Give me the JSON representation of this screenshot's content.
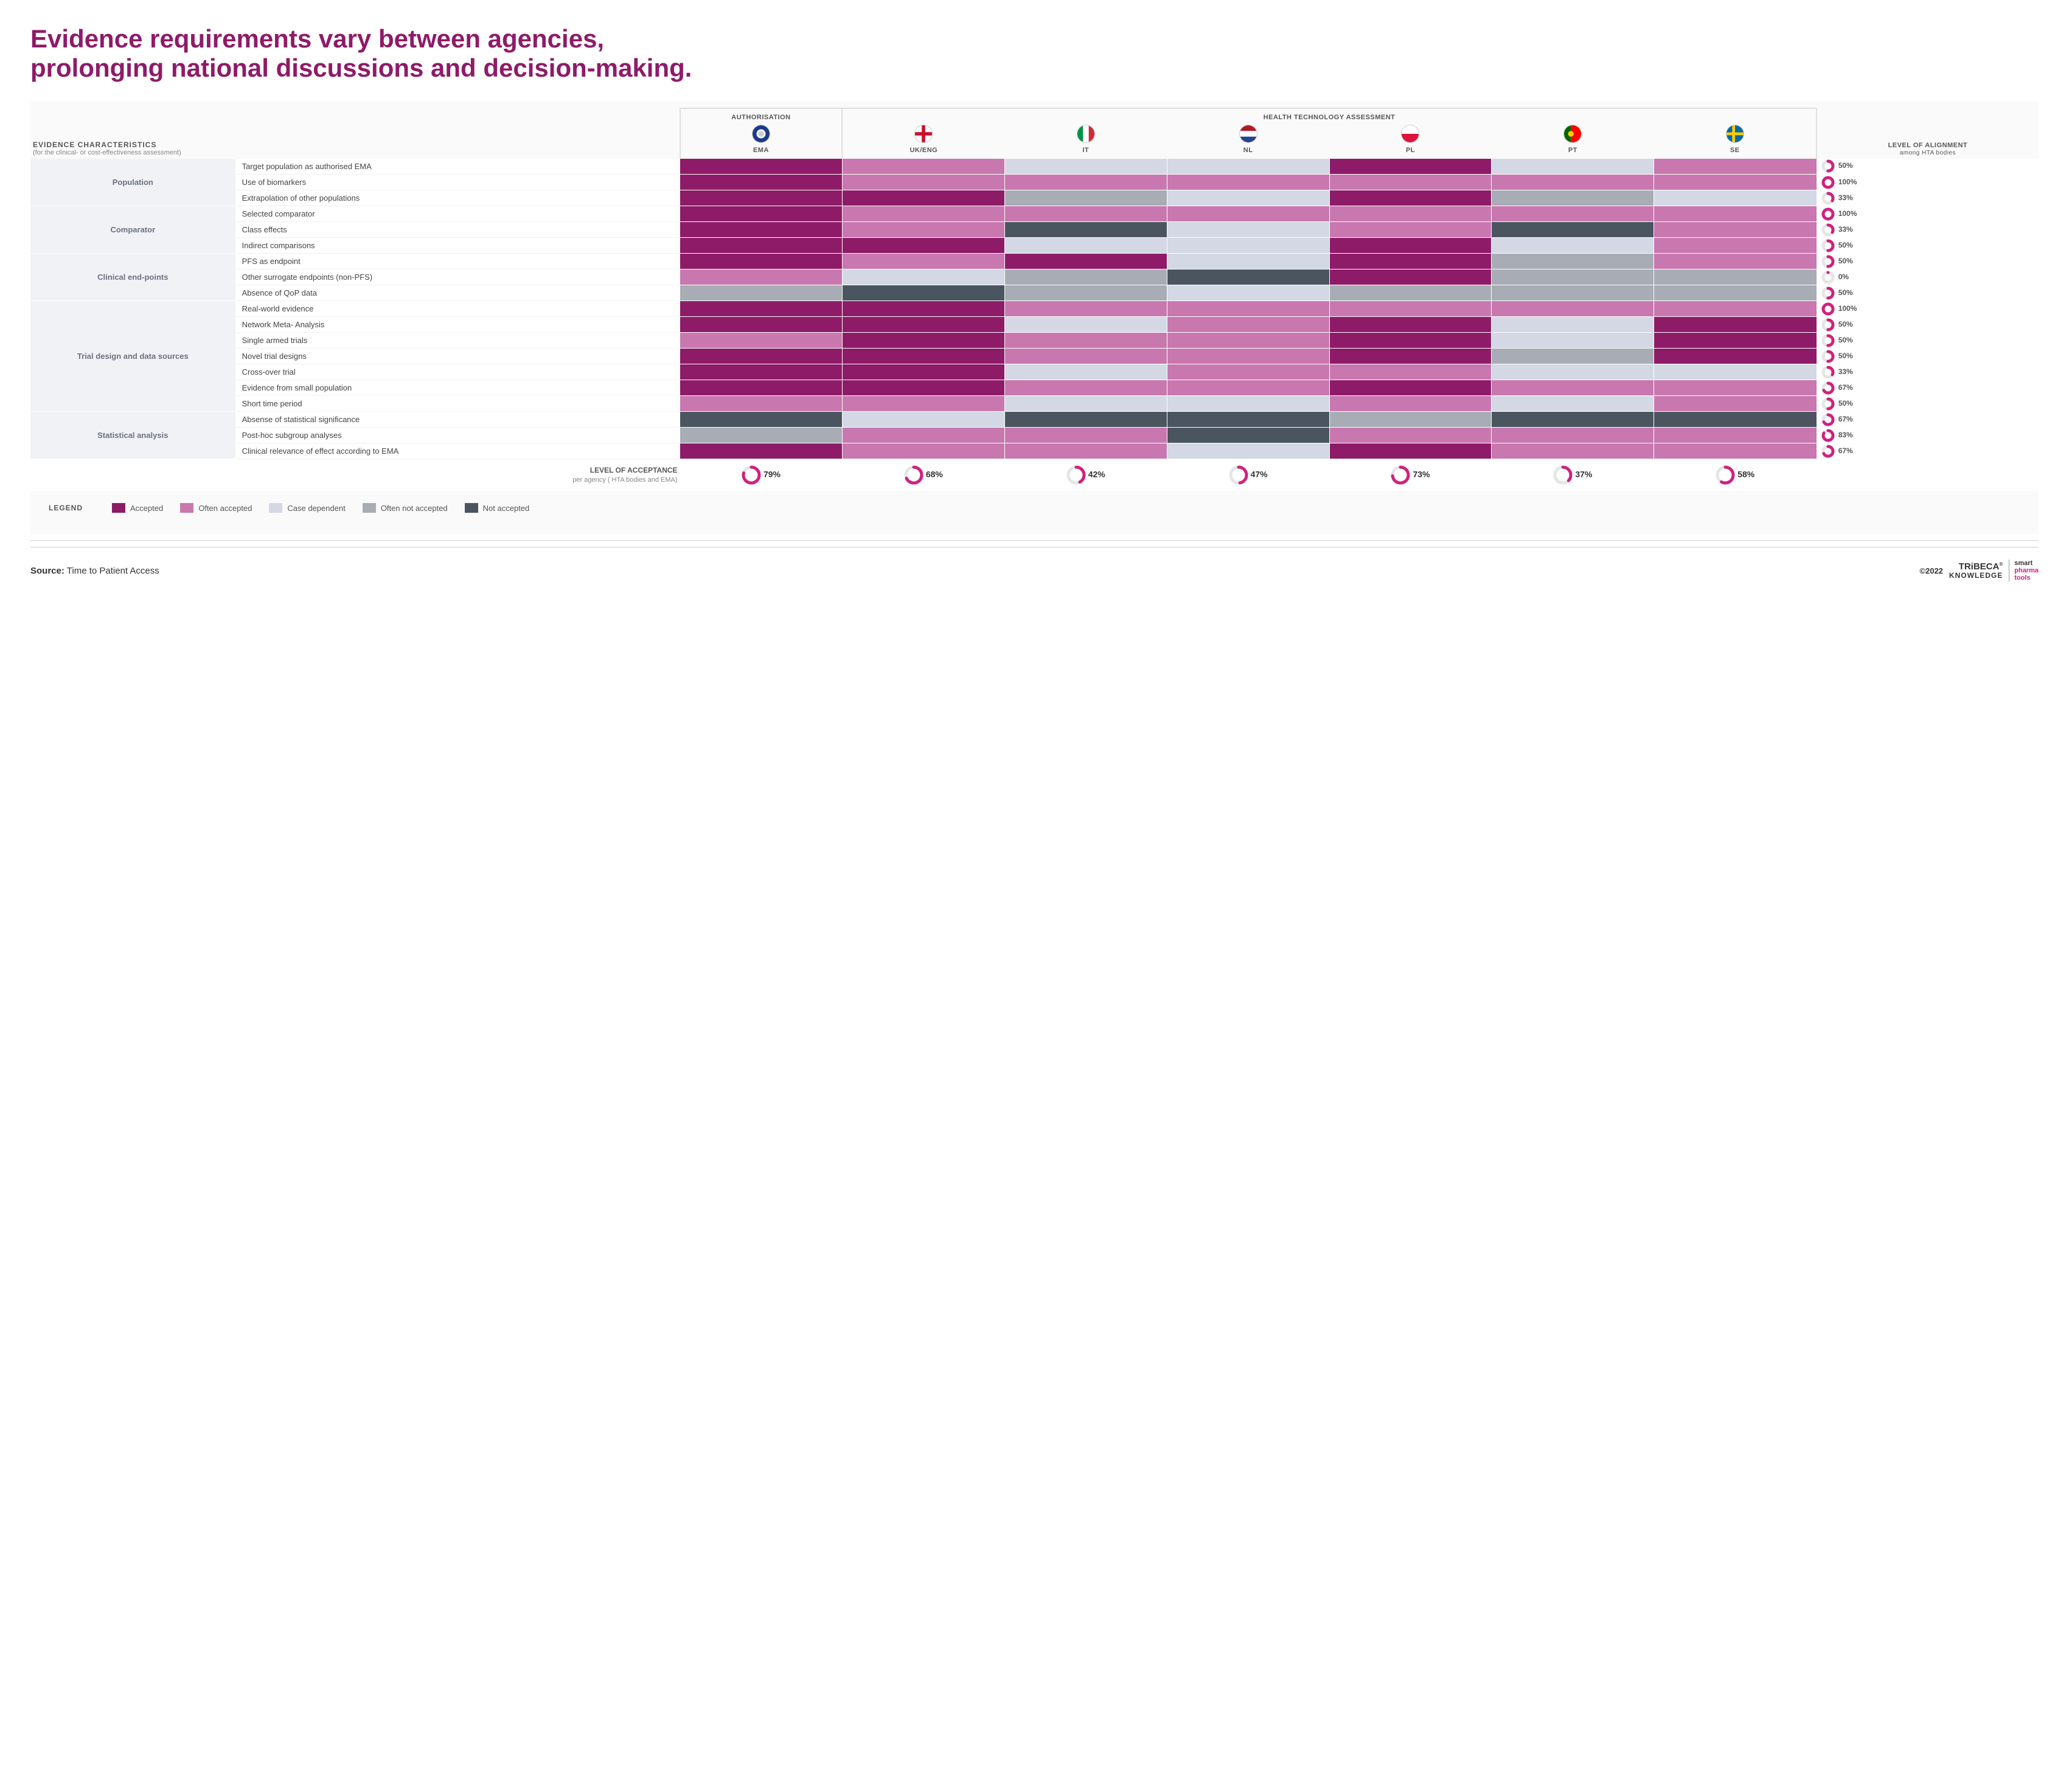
{
  "title": "Evidence requirements vary between agencies, prolonging national discussions and decision-making.",
  "header": {
    "ec_title": "EVIDENCE CHARACTERISTICS",
    "ec_sub": "(for the clinical- or cost-effectiveness assessment)",
    "auth": "AUTHORISATION",
    "hta": "HEALTH TECHNOLOGY ASSESSMENT",
    "align_title": "LEVEL OF ALIGNMENT",
    "align_sub": "among HTA bodies"
  },
  "agencies": [
    {
      "code": "EMA",
      "label": "EMA",
      "flag_type": "ema"
    },
    {
      "code": "UK",
      "label": "UK/ENG",
      "flag_type": "eng"
    },
    {
      "code": "IT",
      "label": "IT",
      "flag_type": "it"
    },
    {
      "code": "NL",
      "label": "NL",
      "flag_type": "nl"
    },
    {
      "code": "PL",
      "label": "PL",
      "flag_type": "pl"
    },
    {
      "code": "PT",
      "label": "PT",
      "flag_type": "pt"
    },
    {
      "code": "SE",
      "label": "SE",
      "flag_type": "se"
    }
  ],
  "colors": {
    "accepted": "#8e1b68",
    "often_accepted": "#c878af",
    "case_dependent": "#d3d8e4",
    "often_not_accepted": "#a8adb5",
    "not_accepted": "#4a5560",
    "donut_track": "#e5e5e5",
    "donut_fill": "#d0217e"
  },
  "categories": [
    {
      "name": "Population",
      "rows": [
        {
          "label": "Target population as authorised EMA",
          "cells": [
            "accepted",
            "often_accepted",
            "case_dependent",
            "case_dependent",
            "accepted",
            "case_dependent",
            "often_accepted"
          ],
          "align": 50
        },
        {
          "label": "Use of biomarkers",
          "cells": [
            "accepted",
            "often_accepted",
            "often_accepted",
            "often_accepted",
            "often_accepted",
            "often_accepted",
            "often_accepted"
          ],
          "align": 100
        },
        {
          "label": "Extrapolation of other populations",
          "cells": [
            "accepted",
            "accepted",
            "often_not_accepted",
            "case_dependent",
            "accepted",
            "often_not_accepted",
            "case_dependent"
          ],
          "align": 33
        }
      ]
    },
    {
      "name": "Comparator",
      "rows": [
        {
          "label": "Selected comparator",
          "cells": [
            "accepted",
            "often_accepted",
            "often_accepted",
            "often_accepted",
            "often_accepted",
            "often_accepted",
            "often_accepted"
          ],
          "align": 100
        },
        {
          "label": "Class effects",
          "cells": [
            "accepted",
            "often_accepted",
            "not_accepted",
            "case_dependent",
            "often_accepted",
            "not_accepted",
            "often_accepted"
          ],
          "align": 33
        },
        {
          "label": "Indirect comparisons",
          "cells": [
            "accepted",
            "accepted",
            "case_dependent",
            "case_dependent",
            "accepted",
            "case_dependent",
            "often_accepted"
          ],
          "align": 50
        }
      ]
    },
    {
      "name": "Clinical end-points",
      "rows": [
        {
          "label": "PFS as endpoint",
          "cells": [
            "accepted",
            "often_accepted",
            "accepted",
            "case_dependent",
            "accepted",
            "often_not_accepted",
            "often_accepted"
          ],
          "align": 50
        },
        {
          "label": "Other surrogate endpoints (non-PFS)",
          "cells": [
            "often_accepted",
            "case_dependent",
            "often_not_accepted",
            "not_accepted",
            "accepted",
            "often_not_accepted",
            "often_not_accepted"
          ],
          "align": 0
        },
        {
          "label": "Absence of QoP data",
          "cells": [
            "often_not_accepted",
            "not_accepted",
            "often_not_accepted",
            "case_dependent",
            "often_not_accepted",
            "often_not_accepted",
            "often_not_accepted"
          ],
          "align": 50
        }
      ]
    },
    {
      "name": "Trial design and data sources",
      "rows": [
        {
          "label": "Real-world evidence",
          "cells": [
            "accepted",
            "accepted",
            "often_accepted",
            "often_accepted",
            "often_accepted",
            "often_accepted",
            "often_accepted"
          ],
          "align": 100
        },
        {
          "label": "Network Meta- Analysis",
          "cells": [
            "accepted",
            "accepted",
            "case_dependent",
            "often_accepted",
            "accepted",
            "case_dependent",
            "accepted"
          ],
          "align": 50
        },
        {
          "label": "Single armed trials",
          "cells": [
            "often_accepted",
            "accepted",
            "often_accepted",
            "often_accepted",
            "accepted",
            "case_dependent",
            "accepted"
          ],
          "align": 50
        },
        {
          "label": "Novel trial designs",
          "cells": [
            "accepted",
            "accepted",
            "often_accepted",
            "often_accepted",
            "accepted",
            "often_not_accepted",
            "accepted"
          ],
          "align": 50
        },
        {
          "label": "Cross-over trial",
          "cells": [
            "accepted",
            "accepted",
            "case_dependent",
            "often_accepted",
            "often_accepted",
            "case_dependent",
            "case_dependent"
          ],
          "align": 33
        },
        {
          "label": "Evidence from small population",
          "cells": [
            "accepted",
            "accepted",
            "often_accepted",
            "often_accepted",
            "accepted",
            "often_accepted",
            "often_accepted"
          ],
          "align": 67
        },
        {
          "label": "Short time period",
          "cells": [
            "often_accepted",
            "often_accepted",
            "case_dependent",
            "case_dependent",
            "often_accepted",
            "case_dependent",
            "often_accepted"
          ],
          "align": 50
        }
      ]
    },
    {
      "name": "Statistical analysis",
      "rows": [
        {
          "label": "Absense of statistical significance",
          "cells": [
            "not_accepted",
            "case_dependent",
            "not_accepted",
            "not_accepted",
            "often_not_accepted",
            "not_accepted",
            "not_accepted"
          ],
          "align": 67
        },
        {
          "label": "Post-hoc subgroup analyses",
          "cells": [
            "often_not_accepted",
            "often_accepted",
            "often_accepted",
            "not_accepted",
            "often_accepted",
            "often_accepted",
            "often_accepted"
          ],
          "align": 83
        },
        {
          "label": "Clinical relevance of effect according to EMA",
          "cells": [
            "accepted",
            "often_accepted",
            "often_accepted",
            "case_dependent",
            "accepted",
            "often_accepted",
            "often_accepted"
          ],
          "align": 67
        }
      ]
    }
  ],
  "footer": {
    "label": "LEVEL OF ACCEPTANCE",
    "sub": "per agency ( HTA bodies and EMA)",
    "values": [
      79,
      68,
      42,
      47,
      73,
      37,
      58
    ]
  },
  "legend": {
    "title": "LEGEND",
    "items": [
      {
        "key": "accepted",
        "label": "Accepted"
      },
      {
        "key": "often_accepted",
        "label": "Often accepted"
      },
      {
        "key": "case_dependent",
        "label": "Case dependent"
      },
      {
        "key": "often_not_accepted",
        "label": "Often not accepted"
      },
      {
        "key": "not_accepted",
        "label": "Not accepted"
      }
    ]
  },
  "source": {
    "label": "Source:",
    "text": "Time to Patient Access",
    "copyright": "©2022",
    "logo_top": "TRiBECA",
    "logo_bottom": "KNOWLEDGE",
    "tagline1": "smart",
    "tagline2": "pharma",
    "tagline3": "tools"
  }
}
